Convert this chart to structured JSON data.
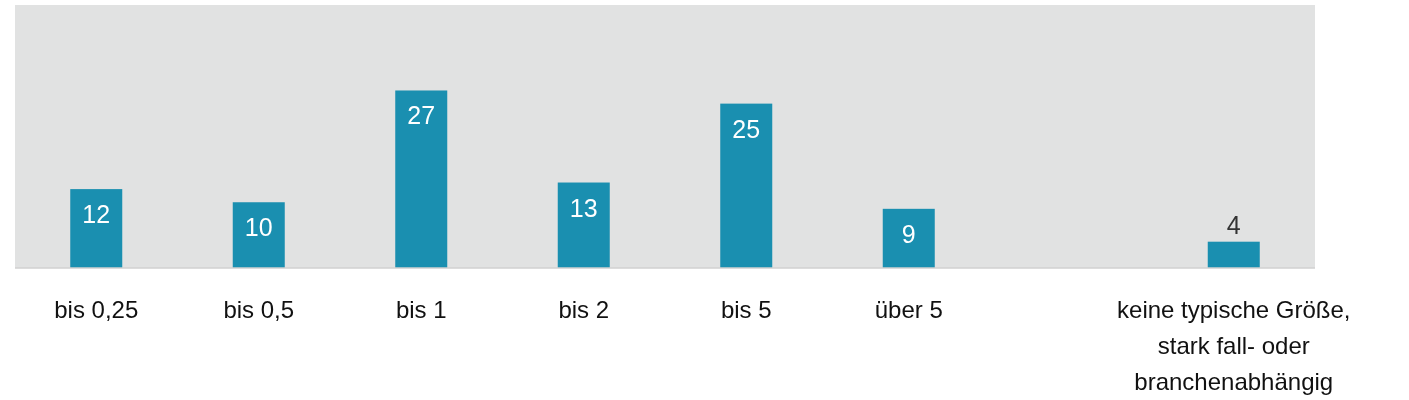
{
  "chart_data": {
    "type": "bar",
    "categories": [
      "bis 0,25",
      "bis 0,5",
      "bis 1",
      "bis 2",
      "bis 5",
      "über 5",
      null,
      "keine typische Größe, stark fall- oder branchenabhängig"
    ],
    "values": [
      12,
      10,
      27,
      13,
      25,
      9,
      null,
      4
    ],
    "color": "#1a8fb0",
    "ylim": [
      0,
      40
    ],
    "data_labels": true,
    "tick_labels": "x"
  }
}
